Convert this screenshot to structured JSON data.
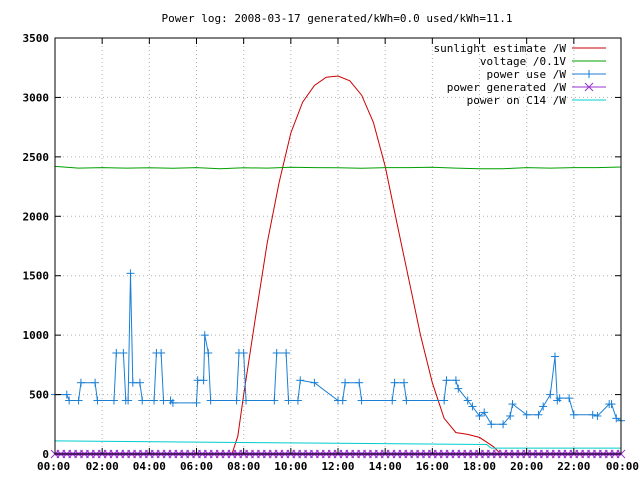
{
  "chart_data": {
    "type": "line",
    "title": "Power log: 2008-03-17 generated/kWh=0.0 used/kWh=11.1",
    "xlabel": "",
    "ylabel": "",
    "xlim": [
      "00:00",
      "24:00"
    ],
    "ylim": [
      0,
      3500
    ],
    "grid": true,
    "legend_position": "top-right",
    "x_tick_labels": [
      "00:00",
      "02:00",
      "04:00",
      "06:00",
      "08:00",
      "10:00",
      "12:00",
      "14:00",
      "16:00",
      "18:00",
      "20:00",
      "22:00",
      "00:00"
    ],
    "y_tick_labels": [
      "0",
      "500",
      "1000",
      "1500",
      "2000",
      "2500",
      "3000",
      "3500"
    ],
    "series": [
      {
        "name": "sunlight estimate /W",
        "color": "#cc0000",
        "marker": "none",
        "x_hours": [
          0,
          7.5,
          7.75,
          8,
          8.5,
          9,
          9.5,
          10,
          10.5,
          11,
          11.5,
          12,
          12.5,
          13,
          13.5,
          14,
          14.5,
          15,
          15.5,
          16,
          16.5,
          17,
          17.2,
          17.5,
          18,
          18.3,
          18.6,
          18.9,
          24
        ],
        "values": [
          0,
          0,
          150,
          500,
          1150,
          1780,
          2280,
          2700,
          2960,
          3100,
          3170,
          3180,
          3140,
          3020,
          2790,
          2420,
          1940,
          1470,
          1000,
          600,
          300,
          180,
          175,
          165,
          140,
          100,
          60,
          0,
          0
        ]
      },
      {
        "name": "voltage /0.1V",
        "color": "#00a000",
        "marker": "none",
        "x_hours": [
          0,
          1,
          2,
          3,
          4,
          5,
          6,
          7,
          8,
          9,
          10,
          11,
          12,
          13,
          14,
          15,
          16,
          17,
          18,
          19,
          20,
          21,
          22,
          23,
          24
        ],
        "values": [
          2420,
          2405,
          2410,
          2405,
          2408,
          2404,
          2410,
          2400,
          2408,
          2405,
          2412,
          2410,
          2408,
          2404,
          2410,
          2410,
          2412,
          2405,
          2400,
          2400,
          2410,
          2405,
          2410,
          2410,
          2415
        ]
      },
      {
        "name": "power use /W",
        "color": "#1a7fd4",
        "marker": "plus",
        "x_hours": [
          0,
          0.5,
          0.6,
          1.0,
          1.1,
          1.7,
          1.8,
          2.5,
          2.6,
          2.9,
          3.0,
          3.1,
          3.2,
          3.3,
          3.6,
          3.7,
          4.2,
          4.3,
          4.5,
          4.6,
          4.9,
          5.0,
          6.0,
          6.05,
          6.3,
          6.35,
          6.5,
          6.6,
          7.7,
          7.8,
          8.0,
          8.1,
          9.3,
          9.4,
          9.8,
          9.9,
          10.3,
          10.4,
          11.0,
          12.0,
          12.2,
          12.3,
          12.9,
          13.0,
          14.3,
          14.4,
          14.8,
          14.9,
          16.5,
          16.6,
          17.0,
          17.1,
          17.5,
          17.7,
          18.0,
          18.2,
          18.5,
          19.0,
          19.3,
          19.4,
          20.0,
          20.5,
          20.7,
          21.0,
          21.2,
          21.3,
          21.4,
          21.8,
          22.0,
          22.8,
          23.0,
          23.5,
          23.6,
          23.8,
          24
        ],
        "values": [
          500,
          500,
          450,
          450,
          600,
          600,
          450,
          450,
          850,
          850,
          450,
          450,
          1520,
          600,
          600,
          450,
          450,
          850,
          850,
          450,
          450,
          430,
          430,
          620,
          620,
          1000,
          850,
          450,
          450,
          850,
          850,
          450,
          450,
          850,
          850,
          450,
          450,
          620,
          600,
          450,
          450,
          600,
          600,
          450,
          450,
          600,
          600,
          450,
          450,
          620,
          620,
          550,
          450,
          400,
          320,
          350,
          250,
          250,
          320,
          420,
          330,
          330,
          400,
          500,
          820,
          450,
          470,
          470,
          330,
          330,
          320,
          420,
          420,
          300,
          280
        ]
      },
      {
        "name": "power generated /W",
        "color": "#9933cc",
        "marker": "cross",
        "x_hours": [
          0,
          24
        ],
        "values": [
          0,
          0
        ]
      },
      {
        "name": "power on C14 /W",
        "color": "#00cccc",
        "marker": "none",
        "x_hours": [
          0,
          6,
          12,
          18.3,
          18.5,
          24
        ],
        "values": [
          110,
          100,
          90,
          80,
          50,
          50
        ]
      }
    ]
  }
}
